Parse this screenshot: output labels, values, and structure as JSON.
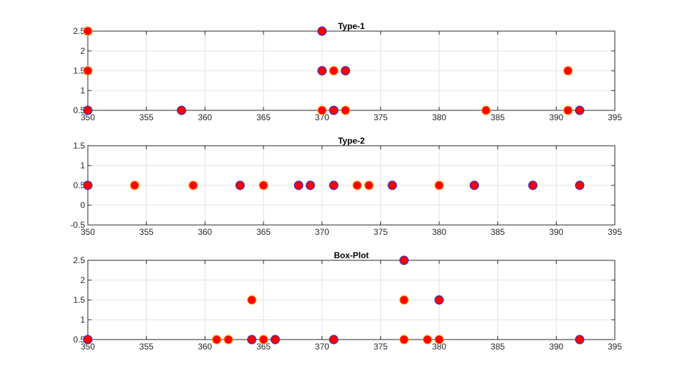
{
  "colors": {
    "marker_fill": "#ff0000",
    "marker_edge_blue": "#3333cc",
    "marker_edge_orange": "#ff9900",
    "axis": "#262626",
    "grid": "#e0e0e0"
  },
  "chart_data": [
    {
      "type": "scatter",
      "title": "Type-1",
      "xlabel": "",
      "ylabel": "",
      "xlim": [
        350,
        395
      ],
      "ylim": [
        0.5,
        2.5
      ],
      "xticks": [
        "350",
        "355",
        "360",
        "365",
        "370",
        "375",
        "380",
        "385",
        "390",
        "395"
      ],
      "yticks": [
        "0.5",
        "1",
        "1.5",
        "2",
        "2.5"
      ],
      "grid": true,
      "points": [
        {
          "x": 350,
          "y": 2.5,
          "edge": "orange"
        },
        {
          "x": 350,
          "y": 1.5,
          "edge": "orange"
        },
        {
          "x": 350,
          "y": 0.5,
          "edge": "blue"
        },
        {
          "x": 358,
          "y": 0.5,
          "edge": "blue"
        },
        {
          "x": 370,
          "y": 2.5,
          "edge": "blue"
        },
        {
          "x": 370,
          "y": 1.5,
          "edge": "blue"
        },
        {
          "x": 371,
          "y": 1.5,
          "edge": "orange"
        },
        {
          "x": 372,
          "y": 1.5,
          "edge": "blue"
        },
        {
          "x": 370,
          "y": 0.5,
          "edge": "orange"
        },
        {
          "x": 371,
          "y": 0.5,
          "edge": "blue"
        },
        {
          "x": 372,
          "y": 0.5,
          "edge": "orange"
        },
        {
          "x": 384,
          "y": 0.5,
          "edge": "orange"
        },
        {
          "x": 391,
          "y": 1.5,
          "edge": "orange"
        },
        {
          "x": 391,
          "y": 0.5,
          "edge": "orange"
        },
        {
          "x": 392,
          "y": 0.5,
          "edge": "blue"
        }
      ]
    },
    {
      "type": "scatter",
      "title": "Type-2",
      "xlabel": "",
      "ylabel": "",
      "xlim": [
        350,
        395
      ],
      "ylim": [
        -0.5,
        1.5
      ],
      "xticks": [
        "350",
        "355",
        "360",
        "365",
        "370",
        "375",
        "380",
        "385",
        "390",
        "395"
      ],
      "yticks": [
        "-0.5",
        "0",
        "0.5",
        "1",
        "1.5"
      ],
      "grid": true,
      "points": [
        {
          "x": 350,
          "y": 0.5,
          "edge": "blue"
        },
        {
          "x": 354,
          "y": 0.5,
          "edge": "orange"
        },
        {
          "x": 359,
          "y": 0.5,
          "edge": "orange"
        },
        {
          "x": 363,
          "y": 0.5,
          "edge": "blue"
        },
        {
          "x": 365,
          "y": 0.5,
          "edge": "orange"
        },
        {
          "x": 368,
          "y": 0.5,
          "edge": "blue"
        },
        {
          "x": 369,
          "y": 0.5,
          "edge": "blue"
        },
        {
          "x": 371,
          "y": 0.5,
          "edge": "blue"
        },
        {
          "x": 373,
          "y": 0.5,
          "edge": "orange"
        },
        {
          "x": 374,
          "y": 0.5,
          "edge": "orange"
        },
        {
          "x": 376,
          "y": 0.5,
          "edge": "blue"
        },
        {
          "x": 380,
          "y": 0.5,
          "edge": "orange"
        },
        {
          "x": 383,
          "y": 0.5,
          "edge": "blue"
        },
        {
          "x": 388,
          "y": 0.5,
          "edge": "blue"
        },
        {
          "x": 392,
          "y": 0.5,
          "edge": "blue"
        }
      ]
    },
    {
      "type": "scatter",
      "title": "Box-Plot",
      "xlabel": "",
      "ylabel": "",
      "xlim": [
        350,
        395
      ],
      "ylim": [
        0.5,
        2.5
      ],
      "xticks": [
        "350",
        "355",
        "360",
        "365",
        "370",
        "375",
        "380",
        "385",
        "390",
        "395"
      ],
      "yticks": [
        "0.5",
        "1",
        "1.5",
        "2",
        "2.5"
      ],
      "grid": true,
      "points": [
        {
          "x": 350,
          "y": 0.5,
          "edge": "blue"
        },
        {
          "x": 361,
          "y": 0.5,
          "edge": "orange"
        },
        {
          "x": 362,
          "y": 0.5,
          "edge": "orange"
        },
        {
          "x": 364,
          "y": 1.5,
          "edge": "orange"
        },
        {
          "x": 364,
          "y": 0.5,
          "edge": "blue"
        },
        {
          "x": 365,
          "y": 0.5,
          "edge": "orange"
        },
        {
          "x": 366,
          "y": 0.5,
          "edge": "blue"
        },
        {
          "x": 371,
          "y": 0.5,
          "edge": "blue"
        },
        {
          "x": 377,
          "y": 2.5,
          "edge": "blue"
        },
        {
          "x": 377,
          "y": 1.5,
          "edge": "orange"
        },
        {
          "x": 377,
          "y": 0.5,
          "edge": "orange"
        },
        {
          "x": 379,
          "y": 0.5,
          "edge": "orange"
        },
        {
          "x": 380,
          "y": 1.5,
          "edge": "blue"
        },
        {
          "x": 380,
          "y": 0.5,
          "edge": "orange"
        },
        {
          "x": 392,
          "y": 0.5,
          "edge": "blue"
        }
      ]
    }
  ]
}
